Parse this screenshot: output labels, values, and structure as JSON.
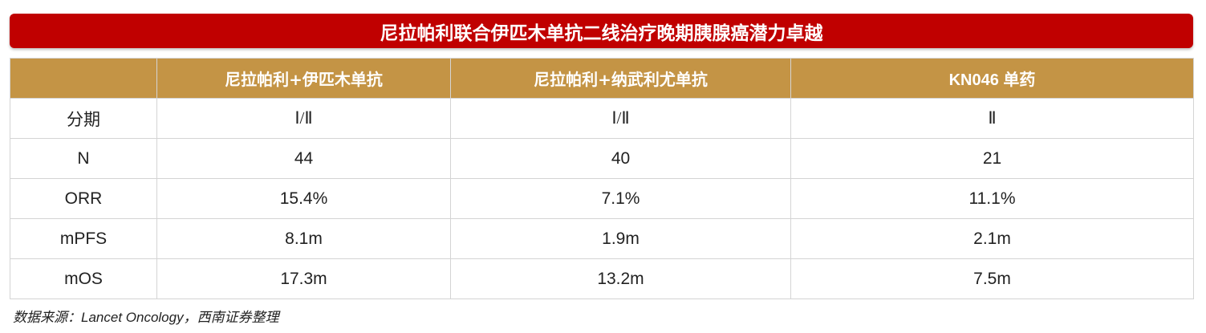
{
  "title": "尼拉帕利联合伊匹木单抗二线治疗晚期胰腺癌潜力卓越",
  "table": {
    "headers": [
      "",
      "尼拉帕利+伊匹木单抗",
      "尼拉帕利+纳武利尤单抗",
      "KN046 单药"
    ],
    "rows": [
      [
        "分期",
        "Ⅰ/Ⅱ",
        "Ⅰ/Ⅱ",
        "Ⅱ"
      ],
      [
        "N",
        "44",
        "40",
        "21"
      ],
      [
        "ORR",
        "15.4%",
        "7.1%",
        "11.1%"
      ],
      [
        "mPFS",
        "8.1m",
        "1.9m",
        "2.1m"
      ],
      [
        "mOS",
        "17.3m",
        "13.2m",
        "7.5m"
      ]
    ]
  },
  "source": "数据来源：Lancet Oncology，西南证券整理",
  "colors": {
    "title_bg": "#c00000",
    "header_bg": "#c49445"
  }
}
